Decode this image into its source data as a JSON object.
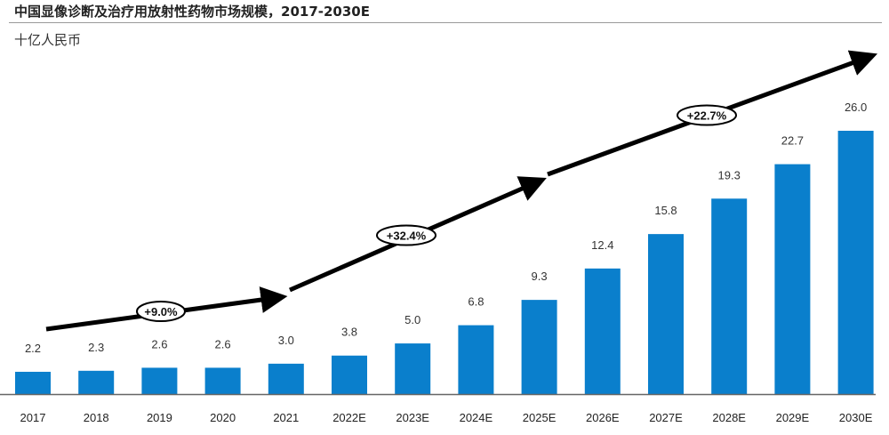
{
  "header": {
    "title": "中国显像诊断及治疗用放射性药物市场规模，2017-2030E",
    "unit": "十亿人民币"
  },
  "colors": {
    "bar": "#0a7fcc",
    "arrow": "#000000",
    "axis": "#666666"
  },
  "chart_data": {
    "type": "bar",
    "title": "中国显像诊断及治疗用放射性药物市场规模，2017-2030E",
    "ylabel": "十亿人民币",
    "xlabel": "",
    "categories": [
      "2017",
      "2018",
      "2019",
      "2020",
      "2021",
      "2022E",
      "2023E",
      "2024E",
      "2025E",
      "2026E",
      "2027E",
      "2028E",
      "2029E",
      "2030E"
    ],
    "values": [
      2.2,
      2.3,
      2.6,
      2.6,
      3.0,
      3.8,
      5.0,
      6.8,
      9.3,
      12.4,
      15.8,
      19.3,
      22.7,
      26.0
    ],
    "value_labels": [
      "2.2",
      "2.3",
      "2.6",
      "2.6",
      "3.0",
      "3.8",
      "5.0",
      "6.8",
      "9.3",
      "12.4",
      "15.8",
      "19.3",
      "22.7",
      "26.0"
    ],
    "ylim": [
      0,
      26.0
    ],
    "grid": false,
    "annotations": [
      {
        "label": "+9.0%",
        "from_index": 0,
        "to_index": 4
      },
      {
        "label": "+32.4%",
        "from_index": 4,
        "to_index": 8
      },
      {
        "label": "+22.7%",
        "from_index": 8,
        "to_index": 13
      }
    ]
  }
}
